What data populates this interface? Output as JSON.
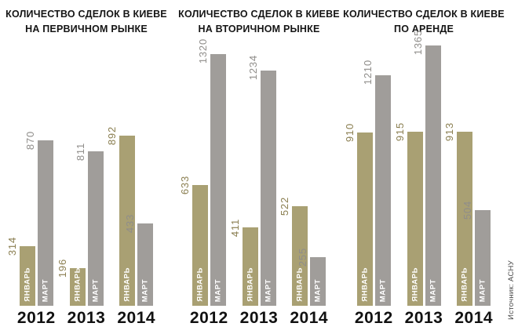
{
  "source": "Источник: АСНУ",
  "months": [
    "ЯНВАРЬ",
    "МАРТ"
  ],
  "colors": {
    "january_bar": "#a9a073",
    "march_bar": "#a09d9a",
    "january_label": "#8a7e50",
    "march_label": "#8f8d8a",
    "text": "#111111",
    "source_text": "#4a4a4a"
  },
  "chart_data": [
    {
      "type": "bar",
      "title_line1": "КОЛИЧЕСТВО СДЕЛОК В КИЕВЕ",
      "title_line2": "НА ПЕРВИЧНОМ РЫНКЕ",
      "categories": [
        "2012",
        "2013",
        "2014"
      ],
      "series": [
        {
          "name": "ЯНВАРЬ",
          "values": [
            314,
            196,
            892
          ]
        },
        {
          "name": "МАРТ",
          "values": [
            870,
            811,
            433
          ]
        }
      ],
      "legend_position": "none",
      "grid": false
    },
    {
      "type": "bar",
      "title_line1": "КОЛИЧЕСТВО СДЕЛОК В КИЕВЕ",
      "title_line2": "НА ВТОРИЧНОМ РЫНКЕ",
      "categories": [
        "2012",
        "2013",
        "2014"
      ],
      "series": [
        {
          "name": "ЯНВАРЬ",
          "values": [
            633,
            411,
            522
          ]
        },
        {
          "name": "МАРТ",
          "values": [
            1320,
            1234,
            255
          ]
        }
      ],
      "legend_position": "none",
      "grid": false
    },
    {
      "type": "bar",
      "title_line1": "КОЛИЧЕСТВО СДЕЛОК В КИЕВЕ",
      "title_line2": "ПО АРЕНДЕ",
      "categories": [
        "2012",
        "2013",
        "2014"
      ],
      "series": [
        {
          "name": "ЯНВАРЬ",
          "values": [
            910,
            915,
            913
          ]
        },
        {
          "name": "МАРТ",
          "values": [
            1210,
            1365,
            504
          ]
        }
      ],
      "legend_position": "none",
      "grid": false
    }
  ]
}
